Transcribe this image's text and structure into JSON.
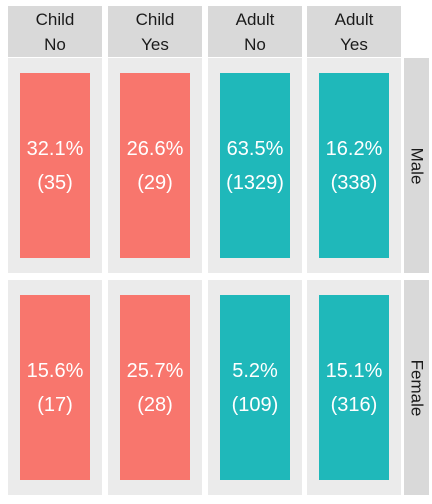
{
  "chart_data": {
    "type": "table",
    "description_of_layout": "",
    "columns": [
      {
        "lines": [
          "Child",
          "No"
        ],
        "fill": "#F8766D"
      },
      {
        "lines": [
          "Child",
          "Yes"
        ],
        "fill": "#F8766D"
      },
      {
        "lines": [
          "Adult",
          "No"
        ],
        "fill": "#1FB8BA"
      },
      {
        "lines": [
          "Adult",
          "Yes"
        ],
        "fill": "#1FB8BA"
      }
    ],
    "rows": [
      {
        "label": "Male",
        "cells": [
          {
            "percent": "32.1%",
            "count": "(35)"
          },
          {
            "percent": "26.6%",
            "count": "(29)"
          },
          {
            "percent": "63.5%",
            "count": "(1329)"
          },
          {
            "percent": "16.2%",
            "count": "(338)"
          }
        ]
      },
      {
        "label": "Female",
        "cells": [
          {
            "percent": "15.6%",
            "count": "(17)"
          },
          {
            "percent": "25.7%",
            "count": "(28)"
          },
          {
            "percent": "5.2%",
            "count": "(109)"
          },
          {
            "percent": "15.1%",
            "count": "(316)"
          }
        ]
      }
    ]
  }
}
